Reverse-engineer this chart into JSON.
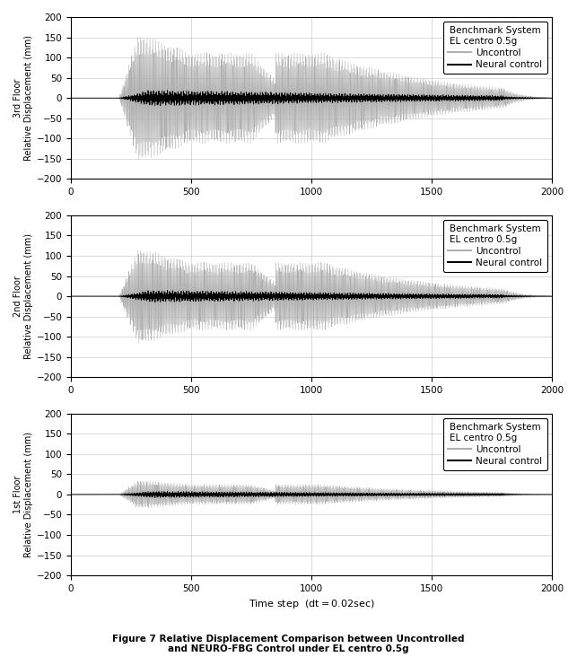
{
  "title": "Figure 7 Relative Displacement Comparison between Uncontrolled\nand NEURO-FBG Control under EL centro 0.5g",
  "floors": [
    "3rd Floor",
    "2nd Floor",
    "1st Floor"
  ],
  "xlabel": "Time step",
  "xlabel_sub": "(dt=0.02sec)",
  "ylabel": "Relative Displacement (mm)",
  "xlim": [
    0,
    2000
  ],
  "ylim": [
    -200,
    200
  ],
  "yticks": [
    -200,
    -150,
    -100,
    -50,
    0,
    50,
    100,
    150,
    200
  ],
  "xticks": [
    0,
    500,
    1000,
    1500,
    2000
  ],
  "legend_title1": "Benchmark System",
  "legend_title2": "EL centro 0.5g",
  "legend_uncontrol": "Uncontrol",
  "legend_neural": "Neural control",
  "uncontrol_color": "#b0b0b0",
  "neural_color": "#000000",
  "grid_color": "#cccccc",
  "n_steps": 2000,
  "floor_amps_uncontrol": [
    160,
    120,
    35
  ],
  "floor_amps_neural": [
    20,
    15,
    8
  ],
  "eq_start": 200,
  "eq_peak1": 280,
  "eq_peak2": 750,
  "eq_end1": 1050,
  "eq_end2": 1800
}
